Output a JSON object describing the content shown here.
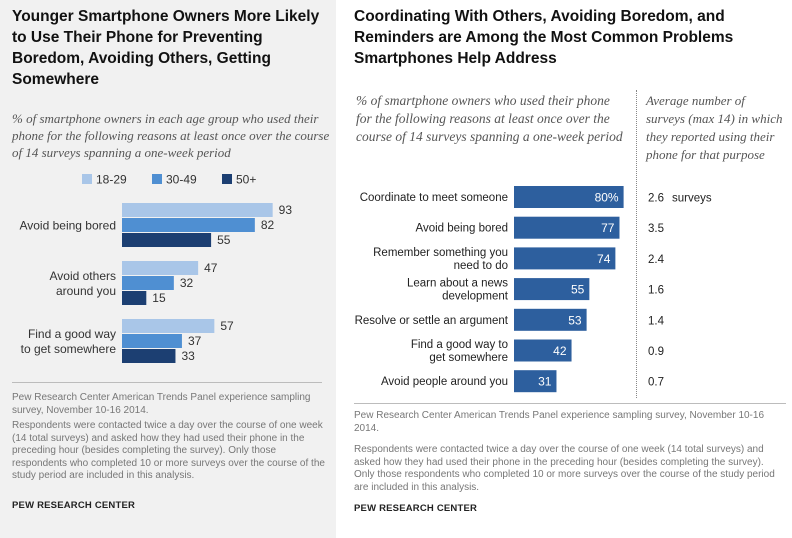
{
  "chart_data": [
    {
      "type": "bar",
      "orientation": "horizontal",
      "title": "Younger Smartphone  Owners More Likely to Use Their Phone for Preventing Boredom, Avoiding Others, Getting Somewhere",
      "subtitle": "% of smartphone owners in each age group who used their phone for the following  reasons at least once over the course of 14 surveys spanning a one-week period",
      "categories": [
        "Avoid being bored",
        "Avoid others around you",
        "Find a good way to get somewhere"
      ],
      "category_lines": [
        [
          "Avoid being bored"
        ],
        [
          "Avoid others",
          "around you"
        ],
        [
          "Find a good way",
          "to get somewhere"
        ]
      ],
      "series": [
        {
          "name": "18-29",
          "color": "#a9c6e8",
          "values": [
            93,
            47,
            57
          ]
        },
        {
          "name": "30-49",
          "color": "#4f8fd2",
          "values": [
            82,
            32,
            37
          ]
        },
        {
          "name": "50+",
          "color": "#1c3f72",
          "values": [
            55,
            15,
            33
          ]
        }
      ],
      "legend_position": "top",
      "xlim": [
        0,
        100
      ],
      "grid": false,
      "source": "Pew Research Center American Trends Panel experience sampling survey, November 10-16 2014.",
      "note": "Respondents were contacted twice a day over the course of one week (14 total surveys) and asked how they had used their phone in the preceding hour (besides completing the survey). Only those respondents who completed 10 or more surveys over the course of the study period are included in this analysis.",
      "brand": "PEW RESEARCH CENTER"
    },
    {
      "type": "bar",
      "orientation": "horizontal",
      "title": "Coordinating With Others, Avoiding Boredom, and Reminders are Among the Most Common Problems Smartphones Help Address",
      "subtitle": "% of smartphone owners who used their phone for the following reasons at least once over the course of 14 surveys spanning a one-week period",
      "secondary_header": "Average number of surveys (max 14) in which they reported using their phone for that purpose",
      "categories": [
        "Coordinate to meet someone",
        "Avoid being bored",
        "Remember something you need to do",
        "Learn about a news development",
        "Resolve or settle an argument",
        "Find a good way to get somewhere",
        "Avoid people around you"
      ],
      "category_lines": [
        [
          "Coordinate to meet someone"
        ],
        [
          "Avoid being bored"
        ],
        [
          "Remember something you",
          "need to do"
        ],
        [
          "Learn about a news",
          "development"
        ],
        [
          "Resolve or settle an argument"
        ],
        [
          "Find a good way to",
          "get somewhere"
        ],
        [
          "Avoid people around you"
        ]
      ],
      "values": [
        80,
        77,
        74,
        55,
        53,
        42,
        31
      ],
      "value_labels": [
        "80%",
        "77",
        "74",
        "55",
        "53",
        "42",
        "31"
      ],
      "average_surveys": [
        "2.6",
        "3.5",
        "2.4",
        "1.6",
        "1.4",
        "0.9",
        "0.7"
      ],
      "average_unit": "surveys",
      "bar_color": "#2d5f9e",
      "xlim": [
        0,
        100
      ],
      "grid": false,
      "source": "Pew Research Center American Trends Panel experience sampling survey, November 10-16 2014.",
      "note": "Respondents were contacted twice a day over the course of one week (14 total surveys) and asked how they had used their phone in the preceding hour (besides completing the survey). Only those respondents who completed 10 or more surveys over the course of the study period are included in this analysis.",
      "brand": "PEW RESEARCH CENTER"
    }
  ]
}
